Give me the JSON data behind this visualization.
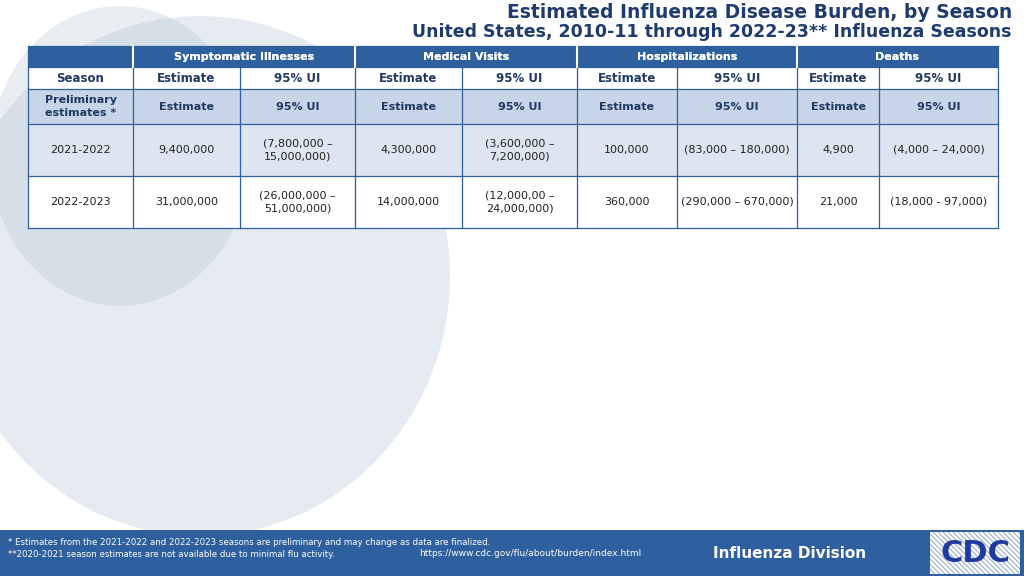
{
  "title_line1": "Estimated Influenza Disease Burden, by Season",
  "title_line2": "United States, 2010-11 through 2022-23** Influenza Seasons",
  "title_color": "#1f3b6e",
  "header_bg": "#2e5f9e",
  "header_text_color": "#ffffff",
  "subheader_bg": "#ffffff",
  "subheader_text_color": "#1f3864",
  "prelim_bg": "#c8d4e8",
  "row_bg_odd": "#dce5f0",
  "row_bg_even": "#ffffff",
  "border_color": "#2e5f9e",
  "col_headers": [
    "Symptomatic Illnesses",
    "Medical Visits",
    "Hospitalizations",
    "Deaths"
  ],
  "data_rows": [
    {
      "season": "2021-2022",
      "symp_est": "9,400,000",
      "symp_ui": "(7,800,000 –\n15,000,000)",
      "med_est": "4,300,000",
      "med_ui": "(3,600,000 –\n7,200,000)",
      "hosp_est": "100,000",
      "hosp_ui": "(83,000 – 180,000)",
      "death_est": "4,900",
      "death_ui": "(4,000 – 24,000)"
    },
    {
      "season": "2022-2023",
      "symp_est": "31,000,000",
      "symp_ui": "(26,000,000 –\n51,000,000)",
      "med_est": "14,000,000",
      "med_ui": "(12,000,00 –\n24,000,000)",
      "hosp_est": "360,000",
      "hosp_ui": "(290,000 – 670,000)",
      "death_est": "21,000",
      "death_ui": "(18,000 - 97,000)"
    }
  ],
  "footer_left1": "* Estimates from the 2021-2022 and 2022-2023 seasons are preliminary and may change as data are finalized.",
  "footer_left2": "**2020-2021 season estimates are not available due to minimal flu activity.",
  "footer_url": "https://www.cdc.gov/flu/about/burden/index.html",
  "footer_brand": "Influenza Division",
  "footer_bg": "#2e5f9e",
  "footer_text_color": "#ffffff"
}
